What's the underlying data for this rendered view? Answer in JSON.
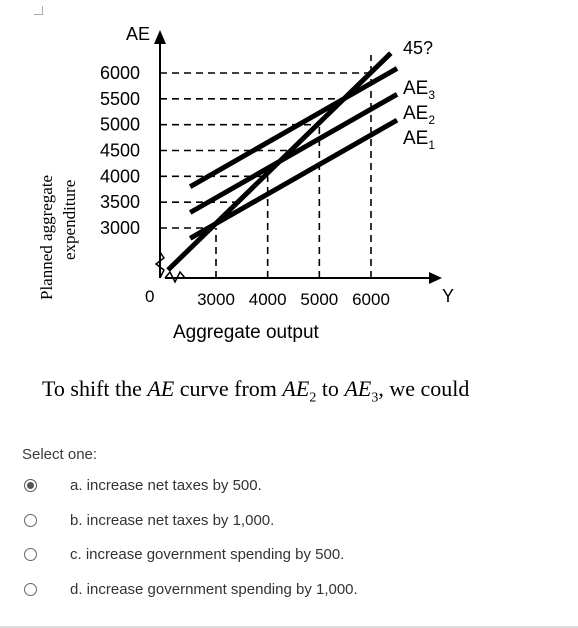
{
  "chart_data": {
    "type": "line",
    "ylabel_line1": "Planned aggregate",
    "ylabel_line2": "expenditure",
    "y_axis_title": "AE",
    "x_axis_title": "Y",
    "xlabel": "Aggregate output",
    "origin_label": "0",
    "x_ticks": [
      "3000",
      "4000",
      "5000",
      "6000"
    ],
    "y_ticks": [
      "6000",
      "5500",
      "5000",
      "4500",
      "4000",
      "3500",
      "3000"
    ],
    "series": [
      {
        "name": "45?",
        "x": [
          2900,
          6000
        ],
        "y": [
          2900,
          6000
        ]
      },
      {
        "name": "AE3",
        "x": [
          2500,
          6000
        ],
        "y": [
          3800,
          5800
        ]
      },
      {
        "name": "AE2",
        "x": [
          2500,
          6000
        ],
        "y": [
          3300,
          5300
        ]
      },
      {
        "name": "AE1",
        "x": [
          2500,
          6000
        ],
        "y": [
          2800,
          4800
        ]
      }
    ],
    "line_labels": {
      "l45": "45?",
      "ae3": "AE",
      "ae3_sub": "3",
      "ae2": "AE",
      "ae2_sub": "2",
      "ae1": "AE",
      "ae1_sub": "1"
    },
    "xlim": [
      2000,
      6000
    ],
    "ylim": [
      2500,
      6000
    ]
  },
  "question": {
    "prefix": "To shift the ",
    "ae": "AE",
    "mid": " curve from ",
    "from": "AE",
    "from_sub": "2",
    "to_word": " to ",
    "to": "AE",
    "to_sub": "3",
    "suffix": ", we could"
  },
  "select_label": "Select one:",
  "options": [
    {
      "text": "a. increase net taxes by 500.",
      "selected": true
    },
    {
      "text": "b. increase net taxes by 1,000.",
      "selected": false
    },
    {
      "text": "c. increase government spending by 500.",
      "selected": false
    },
    {
      "text": "d. increase government spending by 1,000.",
      "selected": false
    }
  ]
}
